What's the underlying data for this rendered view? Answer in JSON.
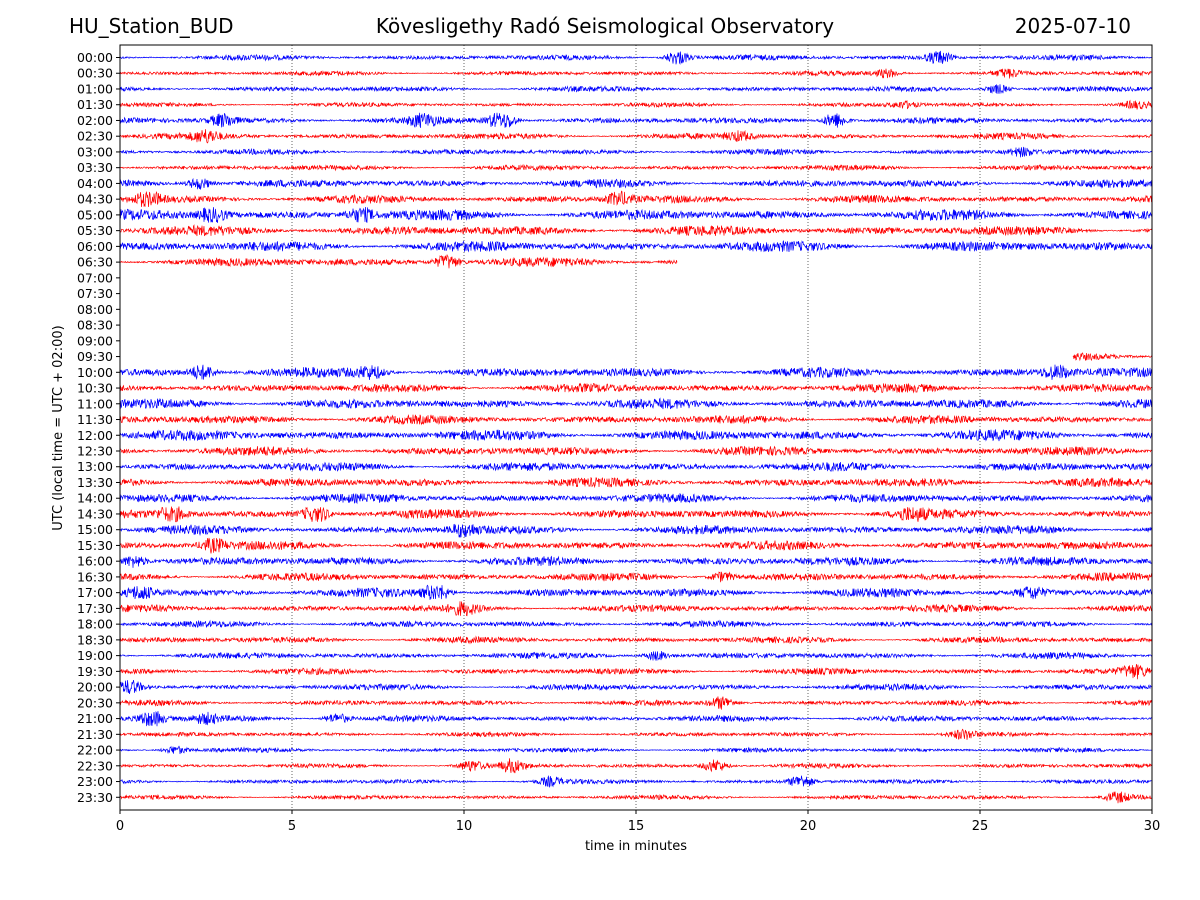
{
  "header": {
    "station": "HU_Station_BUD",
    "observatory": "Kövesligethy Radó Seismological Observatory",
    "date": "2025-07-10"
  },
  "chart_data": {
    "type": "line",
    "title": "Kövesligethy Radó Seismological Observatory",
    "xlabel": "time in minutes",
    "ylabel": "UTC (local time = UTC + 02:00)",
    "xlim": [
      0,
      30
    ],
    "x_ticks": [
      0,
      5,
      10,
      15,
      20,
      25,
      30
    ],
    "vertical_gridlines_at": [
      5,
      10,
      15,
      20,
      25
    ],
    "grid": "vertical dotted",
    "colors": [
      "#0000ff",
      "#ff0000"
    ],
    "rows": [
      {
        "label": "00:00",
        "color": "#0000ff",
        "start": 0,
        "end": 30,
        "amp": 3,
        "bursts": [
          [
            16.2,
            7
          ],
          [
            23.8,
            6
          ]
        ]
      },
      {
        "label": "00:30",
        "color": "#ff0000",
        "start": 0,
        "end": 30,
        "amp": 2.5,
        "bursts": [
          [
            22.3,
            4
          ],
          [
            25.8,
            4
          ]
        ]
      },
      {
        "label": "01:00",
        "color": "#0000ff",
        "start": 0,
        "end": 30,
        "amp": 3,
        "bursts": [
          [
            25.5,
            5
          ]
        ]
      },
      {
        "label": "01:30",
        "color": "#ff0000",
        "start": 0,
        "end": 30,
        "amp": 2.5,
        "bursts": [
          [
            22.8,
            3
          ],
          [
            29.5,
            3
          ]
        ]
      },
      {
        "label": "02:00",
        "color": "#0000ff",
        "start": 0,
        "end": 30,
        "amp": 3.5,
        "bursts": [
          [
            3,
            6
          ],
          [
            8.8,
            6
          ],
          [
            11.1,
            12
          ],
          [
            20.8,
            8
          ]
        ]
      },
      {
        "label": "02:30",
        "color": "#ff0000",
        "start": 0,
        "end": 30,
        "amp": 3.5,
        "bursts": [
          [
            2.5,
            5
          ],
          [
            18,
            4
          ]
        ]
      },
      {
        "label": "03:00",
        "color": "#0000ff",
        "start": 0,
        "end": 30,
        "amp": 3,
        "bursts": [
          [
            26.2,
            4
          ]
        ]
      },
      {
        "label": "03:30",
        "color": "#ff0000",
        "start": 0,
        "end": 30,
        "amp": 3,
        "bursts": []
      },
      {
        "label": "04:00",
        "color": "#0000ff",
        "start": 0,
        "end": 30,
        "amp": 4.5,
        "bursts": [
          [
            2.3,
            6
          ]
        ]
      },
      {
        "label": "04:30",
        "color": "#ff0000",
        "start": 0,
        "end": 30,
        "amp": 4.5,
        "bursts": [
          [
            0.8,
            8
          ],
          [
            14.5,
            6
          ]
        ]
      },
      {
        "label": "05:00",
        "color": "#0000ff",
        "start": 0,
        "end": 30,
        "amp": 6,
        "bursts": [
          [
            2.7,
            8
          ],
          [
            7,
            7
          ]
        ]
      },
      {
        "label": "05:30",
        "color": "#ff0000",
        "start": 0,
        "end": 30,
        "amp": 5.5,
        "bursts": []
      },
      {
        "label": "06:00",
        "color": "#0000ff",
        "start": 0,
        "end": 30,
        "amp": 6,
        "bursts": []
      },
      {
        "label": "06:30",
        "color": "#ff0000",
        "start": 0,
        "end": 16.2,
        "amp": 5,
        "bursts": [
          [
            9.5,
            7
          ]
        ]
      },
      {
        "label": "07:00",
        "color": "#0000ff",
        "start": 0,
        "end": 0,
        "amp": 0,
        "bursts": []
      },
      {
        "label": "07:30",
        "color": "#ff0000",
        "start": 0,
        "end": 0,
        "amp": 0,
        "bursts": []
      },
      {
        "label": "08:00",
        "color": "#0000ff",
        "start": 0,
        "end": 0,
        "amp": 0,
        "bursts": []
      },
      {
        "label": "08:30",
        "color": "#ff0000",
        "start": 0,
        "end": 0,
        "amp": 0,
        "bursts": []
      },
      {
        "label": "09:00",
        "color": "#0000ff",
        "start": 0,
        "end": 0,
        "amp": 0,
        "bursts": []
      },
      {
        "label": "09:30",
        "color": "#ff0000",
        "start": 27.7,
        "end": 30,
        "amp": 4.5,
        "bursts": []
      },
      {
        "label": "10:00",
        "color": "#0000ff",
        "start": 0,
        "end": 30,
        "amp": 5.5,
        "bursts": [
          [
            2.4,
            7
          ],
          [
            7.3,
            6
          ],
          [
            27.2,
            7
          ]
        ]
      },
      {
        "label": "10:30",
        "color": "#ff0000",
        "start": 0,
        "end": 30,
        "amp": 5,
        "bursts": []
      },
      {
        "label": "11:00",
        "color": "#0000ff",
        "start": 0,
        "end": 30,
        "amp": 5.5,
        "bursts": []
      },
      {
        "label": "11:30",
        "color": "#ff0000",
        "start": 0,
        "end": 30,
        "amp": 5,
        "bursts": []
      },
      {
        "label": "12:00",
        "color": "#0000ff",
        "start": 0,
        "end": 30,
        "amp": 6,
        "bursts": []
      },
      {
        "label": "12:30",
        "color": "#ff0000",
        "start": 0,
        "end": 30,
        "amp": 5,
        "bursts": []
      },
      {
        "label": "13:00",
        "color": "#0000ff",
        "start": 0,
        "end": 30,
        "amp": 5,
        "bursts": []
      },
      {
        "label": "13:30",
        "color": "#ff0000",
        "start": 0,
        "end": 30,
        "amp": 5,
        "bursts": []
      },
      {
        "label": "14:00",
        "color": "#0000ff",
        "start": 0,
        "end": 30,
        "amp": 5,
        "bursts": []
      },
      {
        "label": "14:30",
        "color": "#ff0000",
        "start": 0,
        "end": 30,
        "amp": 5,
        "bursts": [
          [
            1.5,
            7
          ],
          [
            5.7,
            9
          ],
          [
            23,
            7
          ]
        ]
      },
      {
        "label": "15:00",
        "color": "#0000ff",
        "start": 0,
        "end": 30,
        "amp": 5,
        "bursts": [
          [
            10,
            6
          ]
        ]
      },
      {
        "label": "15:30",
        "color": "#ff0000",
        "start": 0,
        "end": 30,
        "amp": 5,
        "bursts": [
          [
            2.7,
            6
          ]
        ]
      },
      {
        "label": "16:00",
        "color": "#0000ff",
        "start": 0,
        "end": 30,
        "amp": 5,
        "bursts": [
          [
            0.4,
            6
          ]
        ]
      },
      {
        "label": "16:30",
        "color": "#ff0000",
        "start": 0,
        "end": 30,
        "amp": 4.5,
        "bursts": [
          [
            17.5,
            5
          ]
        ]
      },
      {
        "label": "17:00",
        "color": "#0000ff",
        "start": 0,
        "end": 30,
        "amp": 5,
        "bursts": [
          [
            0.6,
            6
          ],
          [
            9.2,
            9
          ],
          [
            26.5,
            5
          ]
        ]
      },
      {
        "label": "17:30",
        "color": "#ff0000",
        "start": 0,
        "end": 30,
        "amp": 4,
        "bursts": [
          [
            10,
            5
          ]
        ]
      },
      {
        "label": "18:00",
        "color": "#0000ff",
        "start": 0,
        "end": 30,
        "amp": 3.5,
        "bursts": []
      },
      {
        "label": "18:30",
        "color": "#ff0000",
        "start": 0,
        "end": 30,
        "amp": 3.5,
        "bursts": []
      },
      {
        "label": "19:00",
        "color": "#0000ff",
        "start": 0,
        "end": 30,
        "amp": 3.5,
        "bursts": [
          [
            15.6,
            5
          ]
        ]
      },
      {
        "label": "19:30",
        "color": "#ff0000",
        "start": 0,
        "end": 30,
        "amp": 3.5,
        "bursts": [
          [
            29.5,
            5
          ]
        ]
      },
      {
        "label": "20:00",
        "color": "#0000ff",
        "start": 0,
        "end": 30,
        "amp": 3.5,
        "bursts": [
          [
            0.3,
            6
          ]
        ]
      },
      {
        "label": "20:30",
        "color": "#ff0000",
        "start": 0,
        "end": 30,
        "amp": 3,
        "bursts": [
          [
            17.5,
            6
          ]
        ]
      },
      {
        "label": "21:00",
        "color": "#0000ff",
        "start": 0,
        "end": 30,
        "amp": 3.5,
        "bursts": [
          [
            0.9,
            8
          ],
          [
            2.5,
            4
          ],
          [
            6.3,
            5
          ]
        ]
      },
      {
        "label": "21:30",
        "color": "#ff0000",
        "start": 0,
        "end": 30,
        "amp": 2.5,
        "bursts": [
          [
            24.5,
            4
          ]
        ]
      },
      {
        "label": "22:00",
        "color": "#0000ff",
        "start": 0,
        "end": 30,
        "amp": 2.5,
        "bursts": [
          [
            1.6,
            4
          ]
        ]
      },
      {
        "label": "22:30",
        "color": "#ff0000",
        "start": 0,
        "end": 30,
        "amp": 2.5,
        "bursts": [
          [
            10.2,
            5
          ],
          [
            11.4,
            6
          ],
          [
            17.3,
            6
          ]
        ]
      },
      {
        "label": "23:00",
        "color": "#0000ff",
        "start": 0,
        "end": 30,
        "amp": 2.5,
        "bursts": [
          [
            12.5,
            4
          ],
          [
            19.8,
            6
          ]
        ]
      },
      {
        "label": "23:30",
        "color": "#ff0000",
        "start": 0,
        "end": 30,
        "amp": 2.5,
        "bursts": [
          [
            29,
            5
          ]
        ]
      }
    ]
  }
}
